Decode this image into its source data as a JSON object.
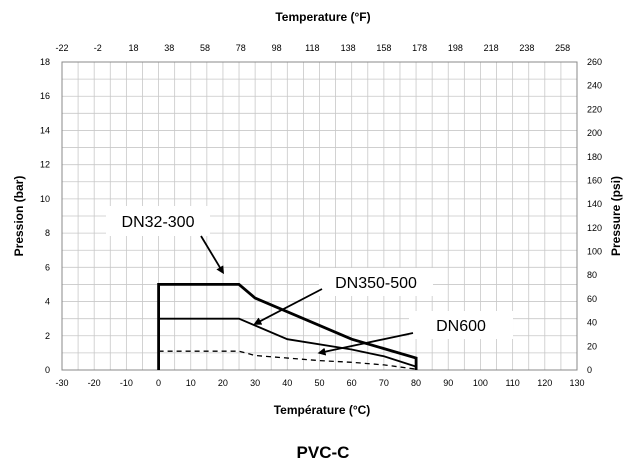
{
  "chart_data": {
    "type": "line",
    "title": "PVC-C",
    "xlabel": "Température (°C)",
    "x2label": "Temperature (°F)",
    "ylabel": "Pression (bar)",
    "y2label": "Pressure (psi)",
    "xlim": [
      -30,
      130
    ],
    "ylim": [
      0,
      18
    ],
    "y2lim": [
      0,
      260
    ],
    "grid": true,
    "x_ticks": [
      -30,
      -20,
      -10,
      0,
      10,
      20,
      30,
      40,
      50,
      60,
      70,
      80,
      90,
      100,
      110,
      120,
      130
    ],
    "x2_ticks": [
      -22,
      -2,
      18,
      38,
      58,
      78,
      98,
      118,
      138,
      158,
      178,
      198,
      218,
      238,
      258
    ],
    "y_ticks": [
      0,
      2,
      4,
      6,
      8,
      10,
      12,
      14,
      16,
      18
    ],
    "y2_ticks": [
      0,
      20,
      40,
      60,
      80,
      100,
      120,
      140,
      160,
      180,
      200,
      220,
      240,
      260
    ],
    "series": [
      {
        "name": "DN32-300",
        "style": "solid-thick",
        "x": [
          0,
          0,
          25,
          30,
          60,
          80,
          80
        ],
        "y": [
          0,
          5,
          5,
          4.2,
          1.8,
          0.7,
          0
        ]
      },
      {
        "name": "DN350-500",
        "style": "solid",
        "x": [
          0,
          25,
          30,
          40,
          60,
          70,
          80
        ],
        "y": [
          3,
          3,
          2.6,
          1.8,
          1.2,
          0.8,
          0.2
        ]
      },
      {
        "name": "DN600",
        "style": "dashed",
        "x": [
          0,
          25,
          30,
          50,
          60,
          70,
          80
        ],
        "y": [
          1.1,
          1.1,
          0.85,
          0.55,
          0.45,
          0.3,
          0.05
        ]
      }
    ],
    "annotations": [
      {
        "text": "DN32-300",
        "target_x": 20,
        "target_y": 5.7
      },
      {
        "text": "DN350-500",
        "target_x": 30,
        "target_y": 2.7
      },
      {
        "text": "DN600",
        "target_x": 50,
        "target_y": 1.0
      }
    ]
  }
}
